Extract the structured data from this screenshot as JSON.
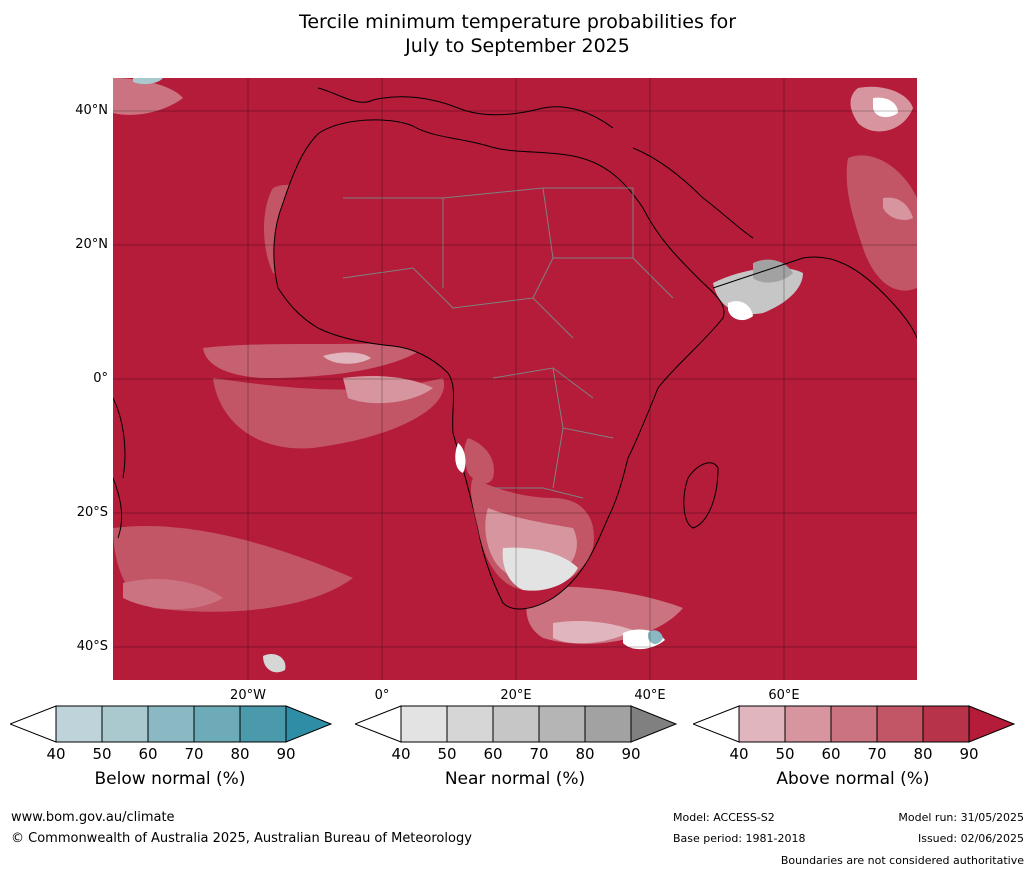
{
  "title_line1": "Tercile minimum temperature probabilities for",
  "title_line2": "July to September 2025",
  "map": {
    "lat_labels": [
      "40°N",
      "20°N",
      "0°",
      "20°S",
      "40°S"
    ],
    "lon_labels": [
      "20°W",
      "0°",
      "20°E",
      "40°E",
      "60°E"
    ],
    "ocean_color": "#b41c3a",
    "coast_color": "#000000",
    "border_color": "#808080"
  },
  "colorbars": [
    {
      "title": "Below normal (%)",
      "ticks": [
        "40",
        "50",
        "60",
        "70",
        "80",
        "90"
      ],
      "colors": [
        "#ffffff",
        "#bed4da",
        "#a9c9cf",
        "#8ab9c3",
        "#6dabb9",
        "#4a9aac",
        "#2e8ea6"
      ]
    },
    {
      "title": "Near normal (%)",
      "ticks": [
        "40",
        "50",
        "60",
        "70",
        "80",
        "90"
      ],
      "colors": [
        "#ffffff",
        "#e3e3e3",
        "#d6d6d6",
        "#c6c6c6",
        "#b5b5b5",
        "#a2a2a2",
        "#808080"
      ]
    },
    {
      "title": "Above normal (%)",
      "ticks": [
        "40",
        "50",
        "60",
        "70",
        "80",
        "90"
      ],
      "colors": [
        "#ffffff",
        "#e0b5bd",
        "#d7959f",
        "#cb7380",
        "#c25666",
        "#b73349",
        "#b41c3a"
      ]
    }
  ],
  "footer": {
    "website": "www.bom.gov.au/climate",
    "copyright": "© Commonwealth of Australia 2025, Australian Bureau of Meteorology",
    "model": "Model: ACCESS-S2",
    "base_period": "Base period: 1981-2018",
    "model_run": "Model run: 31/05/2025",
    "issued": "Issued: 02/06/2025",
    "disclaimer": "Boundaries are not considered authoritative"
  }
}
